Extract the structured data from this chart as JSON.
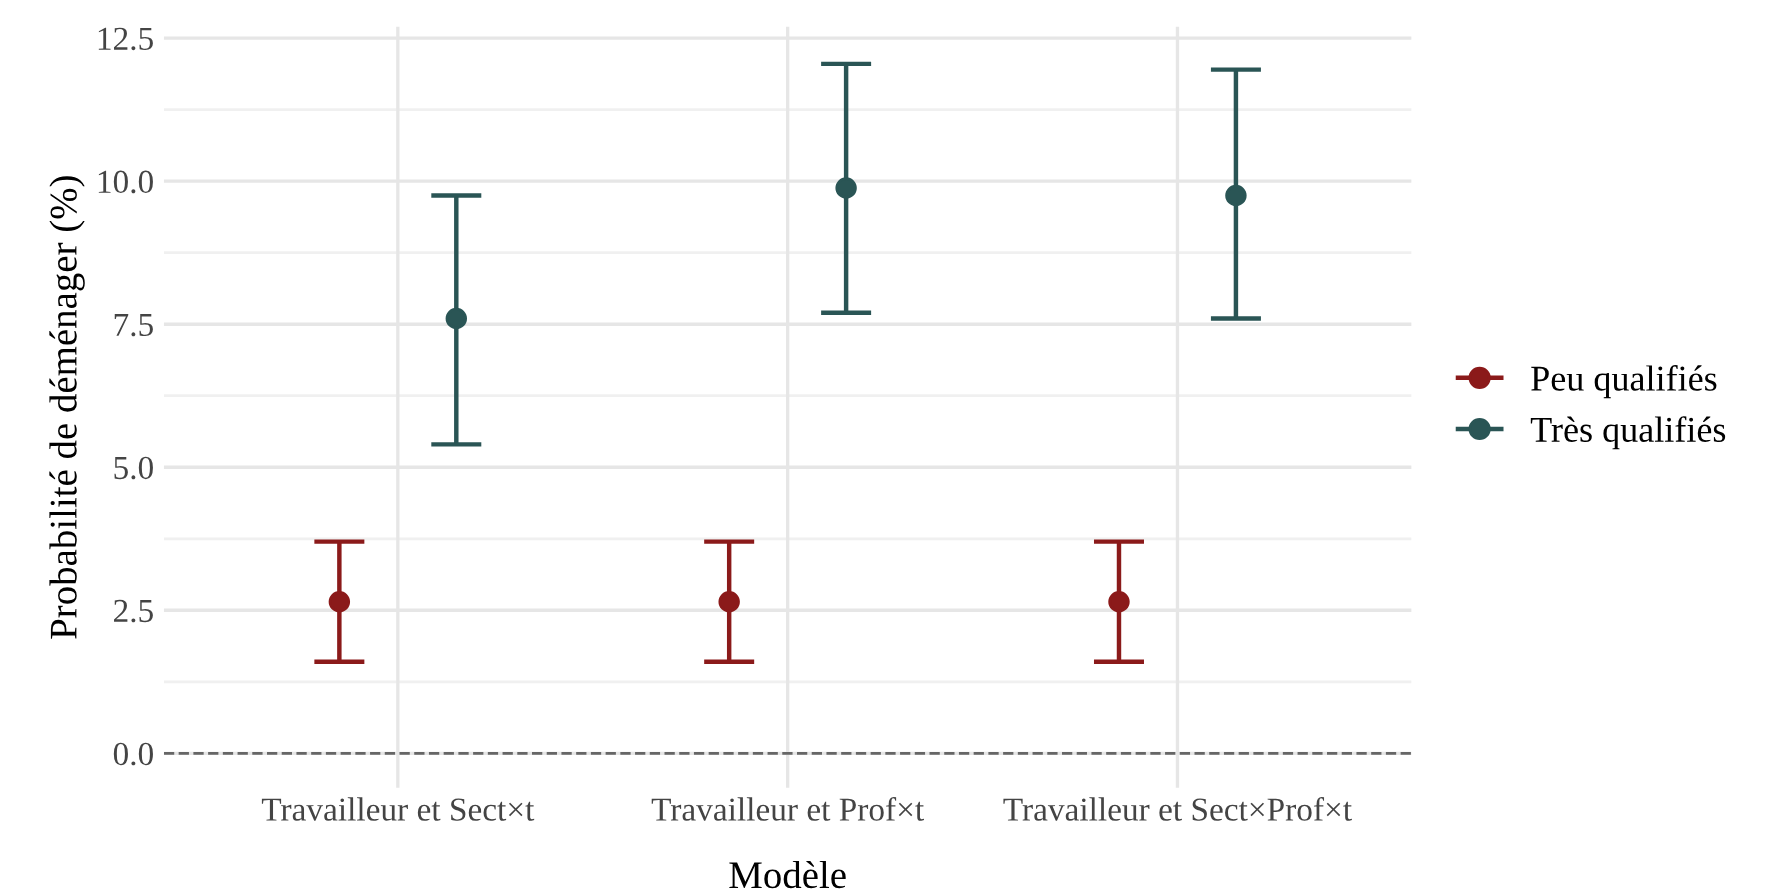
{
  "chart_data": {
    "type": "scatter",
    "xlabel": "Modèle",
    "ylabel": "Probabilité de déménager (%)",
    "categories": [
      "Travailleur et Sect×t",
      "Travailleur et Prof×t",
      "Travailleur et Sect×Prof×t"
    ],
    "series": [
      {
        "name": "Peu qualifiés",
        "color": "#8b1a1a",
        "values": [
          2.65,
          2.65,
          2.65
        ],
        "errors": [
          [
            1.6,
            3.7
          ],
          [
            1.6,
            3.7
          ],
          [
            1.6,
            3.7
          ]
        ]
      },
      {
        "name": "Très qualifiés",
        "color": "#2a5555",
        "values": [
          7.6,
          9.88,
          9.75
        ],
        "errors": [
          [
            5.4,
            9.75
          ],
          [
            7.7,
            12.05
          ],
          [
            7.6,
            11.95
          ]
        ]
      }
    ],
    "ylim": [
      -0.6,
      12.7
    ],
    "yticks": [
      {
        "value": 0,
        "label": "0.0"
      },
      2.5,
      {
        "value": 5,
        "label": "5.0"
      },
      7.5,
      {
        "value": 10,
        "label": "10.0"
      },
      12.5
    ],
    "ref_lines": [
      {
        "axis": "y",
        "value": 0,
        "color": "#666666",
        "line_style": "dashed"
      }
    ],
    "grid": true,
    "legend": "right",
    "marker": "circle"
  }
}
